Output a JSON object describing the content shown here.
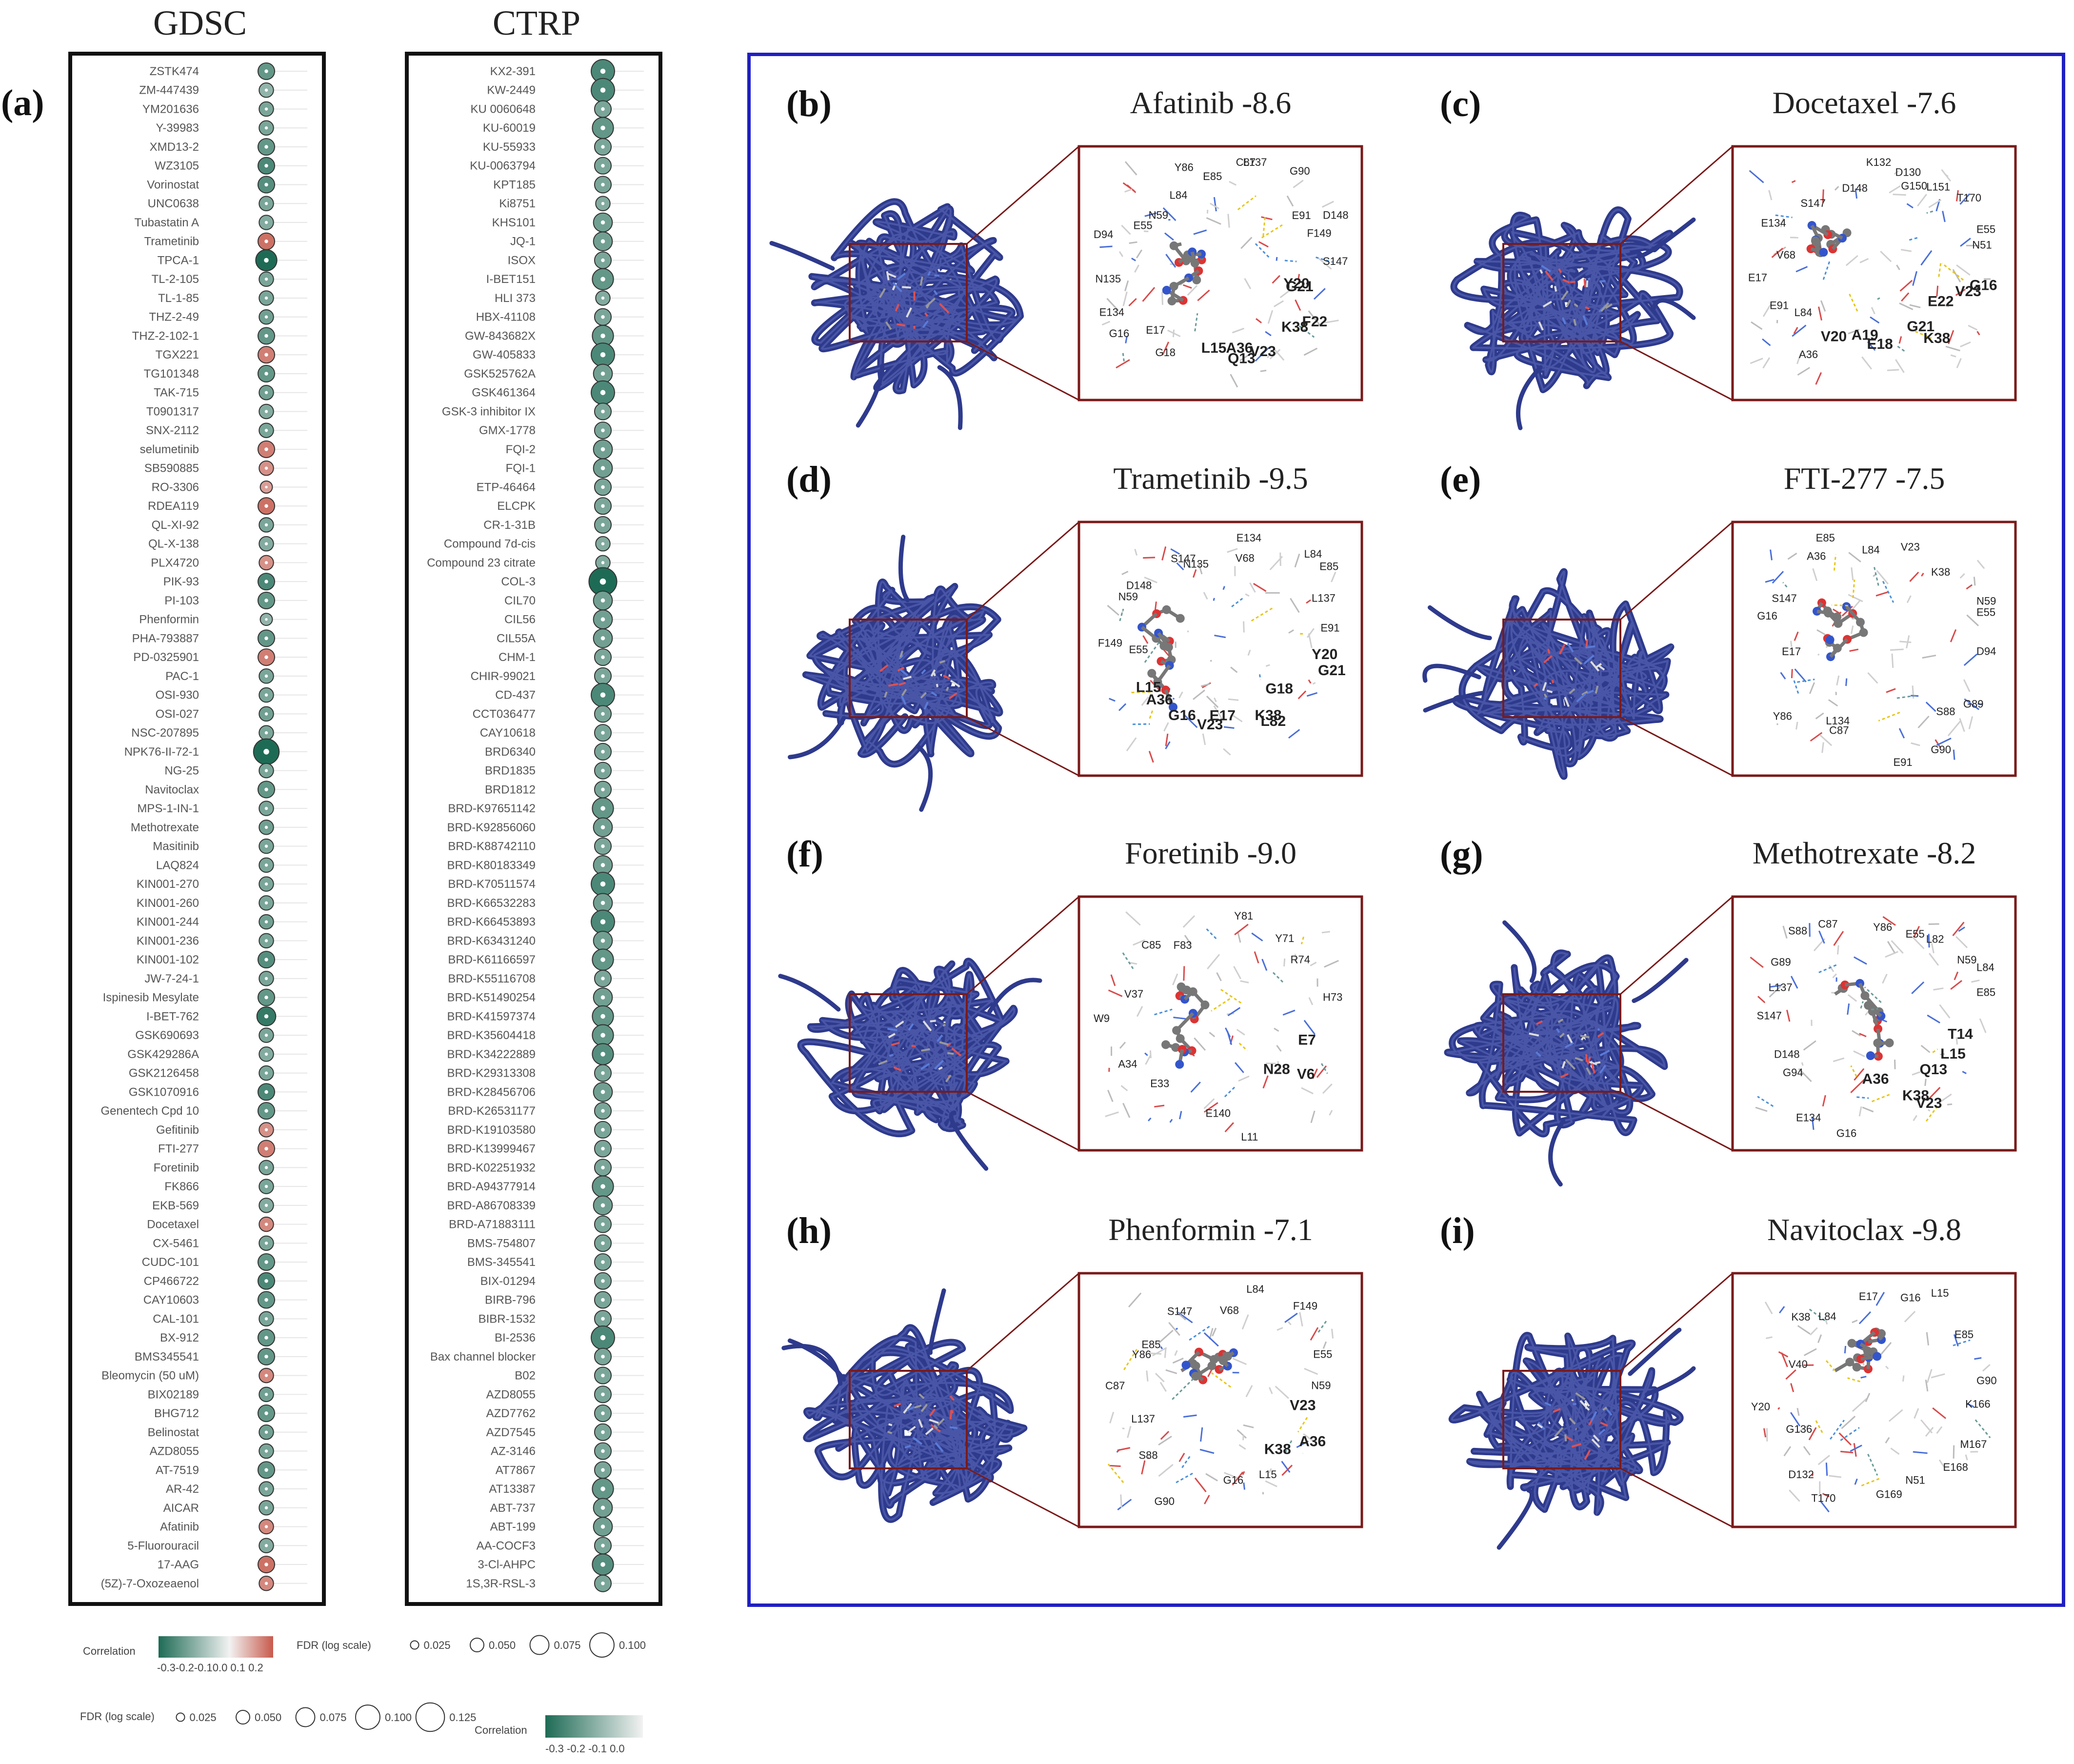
{
  "panel_a": {
    "label": "(a)",
    "gdsc": {
      "title": "GDSC",
      "drugs": [
        "ZSTK474",
        "ZM-447439",
        "YM201636",
        "Y-39983",
        "XMD13-2",
        "WZ3105",
        "Vorinostat",
        "UNC0638",
        "Tubastatin A",
        "Trametinib",
        "TPCA-1",
        "TL-2-105",
        "TL-1-85",
        "THZ-2-49",
        "THZ-2-102-1",
        "TGX221",
        "TG101348",
        "TAK-715",
        "T0901317",
        "SNX-2112",
        "selumetinib",
        "SB590885",
        "RO-3306",
        "RDEA119",
        "QL-XI-92",
        "QL-X-138",
        "PLX4720",
        "PIK-93",
        "PI-103",
        "Phenformin",
        "PHA-793887",
        "PD-0325901",
        "PAC-1",
        "OSI-930",
        "OSI-027",
        "NSC-207895",
        "NPK76-II-72-1",
        "NG-25",
        "Navitoclax",
        "MPS-1-IN-1",
        "Methotrexate",
        "Masitinib",
        "LAQ824",
        "KIN001-270",
        "KIN001-260",
        "KIN001-244",
        "KIN001-236",
        "KIN001-102",
        "JW-7-24-1",
        "Ispinesib Mesylate",
        "I-BET-762",
        "GSK690693",
        "GSK429286A",
        "GSK2126458",
        "GSK1070916",
        "Genentech Cpd 10",
        "Gefitinib",
        "FTI-277",
        "Foretinib",
        "FK866",
        "EKB-569",
        "Docetaxel",
        "CX-5461",
        "CUDC-101",
        "CP466722",
        "CAY10603",
        "CAL-101",
        "BX-912",
        "BMS345541",
        "Bleomycin (50 uM)",
        "BIX02189",
        "BHG712",
        "Belinostat",
        "AZD8055",
        "AT-7519",
        "AR-42",
        "AICAR",
        "Afatinib",
        "5-Fluorouracil",
        "17-AAG",
        "(5Z)-7-Oxozeaenol"
      ],
      "correlation": [
        -0.15,
        -0.05,
        -0.1,
        -0.1,
        -0.15,
        -0.2,
        -0.18,
        -0.1,
        -0.08,
        0.15,
        -0.3,
        -0.1,
        -0.1,
        -0.12,
        -0.15,
        0.12,
        -0.15,
        -0.12,
        -0.08,
        -0.1,
        0.12,
        0.08,
        0.05,
        0.15,
        -0.1,
        -0.08,
        0.08,
        -0.2,
        -0.15,
        -0.05,
        -0.15,
        0.12,
        -0.1,
        -0.1,
        -0.12,
        -0.1,
        -0.35,
        -0.1,
        -0.15,
        -0.1,
        -0.12,
        -0.1,
        -0.1,
        -0.1,
        -0.1,
        -0.12,
        -0.1,
        -0.18,
        -0.1,
        -0.15,
        -0.25,
        -0.1,
        -0.08,
        -0.1,
        -0.2,
        -0.15,
        0.08,
        0.12,
        -0.1,
        -0.1,
        -0.08,
        0.1,
        -0.1,
        -0.15,
        -0.2,
        -0.15,
        -0.1,
        -0.15,
        -0.15,
        0.1,
        -0.12,
        -0.15,
        -0.12,
        -0.1,
        -0.15,
        -0.1,
        -0.1,
        0.1,
        -0.08,
        0.15,
        0.1
      ],
      "fdr": [
        0.06,
        0.05,
        0.05,
        0.05,
        0.06,
        0.06,
        0.06,
        0.05,
        0.05,
        0.06,
        0.08,
        0.05,
        0.05,
        0.05,
        0.06,
        0.06,
        0.06,
        0.05,
        0.05,
        0.05,
        0.06,
        0.05,
        0.04,
        0.06,
        0.05,
        0.05,
        0.05,
        0.06,
        0.06,
        0.04,
        0.06,
        0.06,
        0.05,
        0.05,
        0.05,
        0.05,
        0.1,
        0.05,
        0.06,
        0.05,
        0.05,
        0.05,
        0.05,
        0.05,
        0.05,
        0.05,
        0.05,
        0.06,
        0.05,
        0.06,
        0.07,
        0.05,
        0.05,
        0.05,
        0.06,
        0.06,
        0.05,
        0.06,
        0.05,
        0.05,
        0.05,
        0.05,
        0.05,
        0.06,
        0.06,
        0.06,
        0.05,
        0.06,
        0.06,
        0.05,
        0.05,
        0.06,
        0.05,
        0.05,
        0.06,
        0.05,
        0.05,
        0.05,
        0.05,
        0.06,
        0.05
      ],
      "legend": {
        "correlation_title": "Correlation",
        "correlation_ticks": "-0.3-0.2-0.10.0 0.1 0.2",
        "fdr_title": "FDR (log scale)",
        "fdr_values": [
          "0.025",
          "0.050",
          "0.075",
          "0.100"
        ]
      }
    },
    "ctrp": {
      "title": "CTRP",
      "drugs": [
        "KX2-391",
        "KW-2449",
        "KU 0060648",
        "KU-60019",
        "KU-55933",
        "KU-0063794",
        "KPT185",
        "Ki8751",
        "KHS101",
        "JQ-1",
        "ISOX",
        "I-BET151",
        "HLI 373",
        "HBX-41108",
        "GW-843682X",
        "GW-405833",
        "GSK525762A",
        "GSK461364",
        "GSK-3 inhibitor IX",
        "GMX-1778",
        "FQI-2",
        "FQI-1",
        "ETP-46464",
        "ELCPK",
        "CR-1-31B",
        "Compound 7d-cis",
        "Compound 23 citrate",
        "COL-3",
        "CIL70",
        "CIL56",
        "CIL55A",
        "CHM-1",
        "CHIR-99021",
        "CD-437",
        "CCT036477",
        "CAY10618",
        "BRD6340",
        "BRD1835",
        "BRD1812",
        "BRD-K97651142",
        "BRD-K92856060",
        "BRD-K88742110",
        "BRD-K80183349",
        "BRD-K70511574",
        "BRD-K66532283",
        "BRD-K66453893",
        "BRD-K63431240",
        "BRD-K61166597",
        "BRD-K55116708",
        "BRD-K51490254",
        "BRD-K41597374",
        "BRD-K35604418",
        "BRD-K34222889",
        "BRD-K29313308",
        "BRD-K28456706",
        "BRD-K26531177",
        "BRD-K19103580",
        "BRD-K13999467",
        "BRD-K02251932",
        "BRD-A94377914",
        "BRD-A86708339",
        "BRD-A71883111",
        "BMS-754807",
        "BMS-345541",
        "BIX-01294",
        "BIRB-796",
        "BIBR-1532",
        "BI-2536",
        "Bax channel blocker",
        "B02",
        "AZD8055",
        "AZD7762",
        "AZD7545",
        "AZ-3146",
        "AT7867",
        "AT13387",
        "ABT-737",
        "ABT-199",
        "AA-COCF3",
        "3-Cl-AHPC",
        "1S,3R-RSL-3"
      ],
      "correlation": [
        -0.2,
        -0.2,
        -0.1,
        -0.15,
        -0.1,
        -0.1,
        -0.1,
        -0.08,
        -0.12,
        -0.12,
        -0.1,
        -0.15,
        -0.08,
        -0.1,
        -0.15,
        -0.2,
        -0.12,
        -0.2,
        -0.1,
        -0.1,
        -0.12,
        -0.12,
        -0.1,
        -0.1,
        -0.1,
        -0.08,
        -0.08,
        -0.35,
        -0.12,
        -0.12,
        -0.12,
        -0.1,
        -0.1,
        -0.2,
        -0.1,
        -0.1,
        -0.1,
        -0.1,
        -0.1,
        -0.15,
        -0.12,
        -0.1,
        -0.12,
        -0.2,
        -0.12,
        -0.2,
        -0.12,
        -0.15,
        -0.1,
        -0.12,
        -0.15,
        -0.15,
        -0.18,
        -0.1,
        -0.12,
        -0.1,
        -0.1,
        -0.1,
        -0.1,
        -0.15,
        -0.12,
        -0.1,
        -0.1,
        -0.1,
        -0.1,
        -0.1,
        -0.1,
        -0.2,
        -0.1,
        -0.1,
        -0.1,
        -0.1,
        -0.1,
        -0.1,
        -0.1,
        -0.15,
        -0.12,
        -0.12,
        -0.1,
        -0.18,
        -0.1
      ],
      "fdr": [
        0.09,
        0.09,
        0.06,
        0.08,
        0.06,
        0.06,
        0.06,
        0.05,
        0.07,
        0.07,
        0.06,
        0.08,
        0.05,
        0.06,
        0.08,
        0.09,
        0.07,
        0.09,
        0.06,
        0.06,
        0.07,
        0.07,
        0.06,
        0.06,
        0.06,
        0.05,
        0.05,
        0.11,
        0.07,
        0.07,
        0.07,
        0.06,
        0.06,
        0.09,
        0.06,
        0.06,
        0.06,
        0.06,
        0.06,
        0.08,
        0.07,
        0.06,
        0.07,
        0.09,
        0.07,
        0.09,
        0.07,
        0.08,
        0.06,
        0.07,
        0.08,
        0.08,
        0.08,
        0.06,
        0.07,
        0.06,
        0.06,
        0.06,
        0.06,
        0.08,
        0.07,
        0.06,
        0.06,
        0.06,
        0.06,
        0.06,
        0.06,
        0.09,
        0.06,
        0.06,
        0.06,
        0.06,
        0.06,
        0.06,
        0.06,
        0.08,
        0.07,
        0.07,
        0.06,
        0.08,
        0.06
      ],
      "legend": {
        "fdr_title": "FDR (log scale)",
        "fdr_values": [
          "0.025",
          "0.050",
          "0.075",
          "0.100",
          "0.125"
        ],
        "correlation_title": "Correlation",
        "correlation_ticks": "-0.3   -0.2   -0.1   0.0"
      }
    }
  },
  "docking_panels": [
    {
      "label": "(b)",
      "drug": "Afatinib -8.6",
      "residues_bold": [
        "Y20",
        "G21",
        "F22",
        "K38",
        "V23",
        "A36",
        "Q13",
        "L15"
      ],
      "residues": [
        "G18",
        "E17",
        "G16",
        "E134",
        "N135",
        "D94",
        "E55",
        "N59",
        "L84",
        "Y86",
        "E85",
        "C87",
        "L137",
        "G90",
        "E91",
        "D148",
        "F149",
        "S147"
      ]
    },
    {
      "label": "(c)",
      "drug": "Docetaxel -7.6",
      "residues_bold": [
        "G16",
        "V23",
        "E22",
        "K38",
        "G21",
        "E18",
        "A19",
        "V20"
      ],
      "residues": [
        "A36",
        "L84",
        "E91",
        "E17",
        "V68",
        "E134",
        "S147",
        "D148",
        "K132",
        "D130",
        "G150",
        "L151",
        "T170",
        "E55",
        "N51"
      ]
    },
    {
      "label": "(d)",
      "drug": "Trametinib -9.5",
      "residues_bold": [
        "Y20",
        "G21",
        "G18",
        "L82",
        "K38",
        "E17",
        "V23",
        "G16",
        "A36",
        "L15"
      ],
      "residues": [
        "E55",
        "F149",
        "N59",
        "D148",
        "S147",
        "N135",
        "E134",
        "V68",
        "L84",
        "E85",
        "L137",
        "E91"
      ]
    },
    {
      "label": "(e)",
      "drug": "FTI-277 -7.5",
      "residues_bold": [],
      "residues": [
        "D94",
        "G89",
        "S88",
        "G90",
        "E91",
        "C87",
        "L134",
        "Y86",
        "E17",
        "G16",
        "S147",
        "A36",
        "E85",
        "L84",
        "V23",
        "K38",
        "N59",
        "E55"
      ]
    },
    {
      "label": "(f)",
      "drug": "Foretinib -9.0",
      "residues_bold": [
        "E7",
        "V6",
        "N28"
      ],
      "residues": [
        "L11",
        "E140",
        "E33",
        "A34",
        "W9",
        "V37",
        "C85",
        "F83",
        "Y81",
        "Y71",
        "R74",
        "H73"
      ]
    },
    {
      "label": "(g)",
      "drug": "Methotrexate -8.2",
      "residues_bold": [
        "T14",
        "L15",
        "Q13",
        "V23",
        "K38",
        "A36"
      ],
      "residues": [
        "G16",
        "E134",
        "G94",
        "D148",
        "S147",
        "L137",
        "G89",
        "S88",
        "C87",
        "Y86",
        "E55",
        "L82",
        "N59",
        "L84",
        "E85"
      ]
    },
    {
      "label": "(h)",
      "drug": "Phenformin -7.1",
      "residues_bold": [
        "V23",
        "A36",
        "K38"
      ],
      "residues": [
        "L15",
        "G16",
        "G90",
        "S88",
        "L137",
        "C87",
        "Y86",
        "E85",
        "S147",
        "V68",
        "L84",
        "F149",
        "E55",
        "N59"
      ]
    },
    {
      "label": "(i)",
      "drug": "Navitoclax -9.8",
      "residues_bold": [],
      "residues": [
        "K166",
        "M167",
        "E168",
        "N51",
        "G169",
        "T170",
        "D132",
        "G136",
        "Y20",
        "V40",
        "K38",
        "L84",
        "E17",
        "G16",
        "L15",
        "E85",
        "G90"
      ]
    }
  ],
  "colors": {
    "neg": "#1e6b55",
    "pos": "#c75a4c",
    "ribbon": "#2e3a8c",
    "frame_blue": "#1f1fc2",
    "zoom_frame": "#7a1a1a"
  }
}
